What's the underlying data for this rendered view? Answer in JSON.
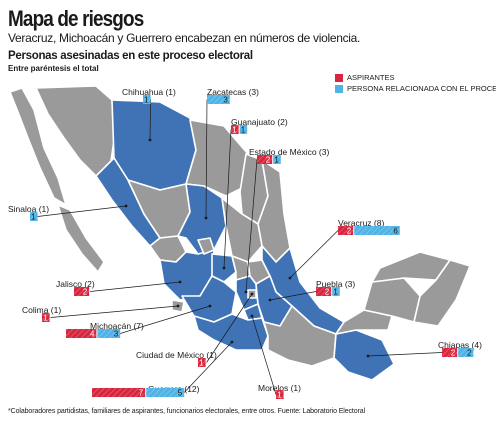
{
  "title": "Mapa de riesgos",
  "subtitle": "Veracruz, Michoacán y Guerrero encabezan en números de violencia.",
  "section_title": "Personas asesinadas en este proceso electoral",
  "section_note": "Entre paréntesis el total",
  "legend": [
    {
      "label": "ASPIRANTES",
      "color": "#d7263d"
    },
    {
      "label": "PERSONA RELACIONADA CON EL PROCESO*",
      "color": "#4fb3e6"
    }
  ],
  "colors": {
    "aspirantes": "#d7263d",
    "relacionada": "#4fb3e6",
    "affected_state": "#3f73b6",
    "other_state": "#9a9a9a"
  },
  "states": [
    {
      "name": "Chihuahua",
      "total": 1,
      "aspirantes": 0,
      "relacionada": 1
    },
    {
      "name": "Zacatecas",
      "total": 3,
      "aspirantes": 0,
      "relacionada": 3
    },
    {
      "name": "Guanajuato",
      "total": 2,
      "aspirantes": 1,
      "relacionada": 1
    },
    {
      "name": "Estado de México",
      "total": 3,
      "aspirantes": 2,
      "relacionada": 1
    },
    {
      "name": "Sinaloa",
      "total": 1,
      "aspirantes": 0,
      "relacionada": 1
    },
    {
      "name": "Veracruz",
      "total": 8,
      "aspirantes": 2,
      "relacionada": 6
    },
    {
      "name": "Jalisco",
      "total": 2,
      "aspirantes": 2,
      "relacionada": 0
    },
    {
      "name": "Puebla",
      "total": 3,
      "aspirantes": 2,
      "relacionada": 1
    },
    {
      "name": "Colima",
      "total": 1,
      "aspirantes": 1,
      "relacionada": 0
    },
    {
      "name": "Michoacán",
      "total": 7,
      "aspirantes": 4,
      "relacionada": 3
    },
    {
      "name": "Chiapas",
      "total": 4,
      "aspirantes": 2,
      "relacionada": 2
    },
    {
      "name": "Ciudad de México",
      "total": 1,
      "aspirantes": 1,
      "relacionada": 0
    },
    {
      "name": "Guerrero",
      "total": 12,
      "aspirantes": 7,
      "relacionada": 5
    },
    {
      "name": "Morelos",
      "total": 1,
      "aspirantes": 1,
      "relacionada": 0
    }
  ],
  "footer": "*Colaboradores partidistas, familiares de aspirantes, funcionarios electorales, entre otros. Fuente: Laboratorio Electoral"
}
